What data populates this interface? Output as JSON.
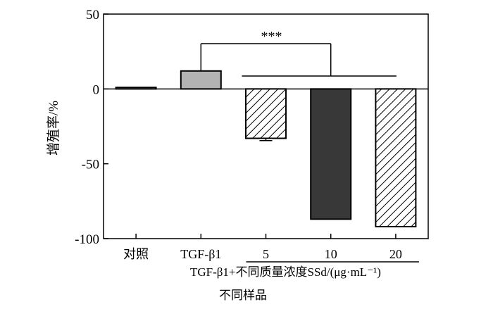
{
  "chart_data": {
    "type": "bar",
    "ylabel": "增殖率/%",
    "xlabel": "不同样品",
    "group_label": "TGF-β1+不同质量浓度SSd/(μg·mL⁻¹)",
    "ylim": [
      -100,
      50
    ],
    "yticks": [
      50,
      0,
      -50,
      -100
    ],
    "categories": [
      "对照",
      "TGF-β1",
      "5",
      "10",
      "20"
    ],
    "values": [
      1,
      12,
      -33,
      -87,
      -92
    ],
    "errors": [
      0,
      0,
      1.5,
      0,
      0
    ],
    "fills": [
      "white",
      "light-gray",
      "hatched",
      "dark-gray",
      "hatched"
    ],
    "colors": {
      "light_gray": "#b3b3b3",
      "dark_gray": "#383838",
      "axis": "#000000"
    },
    "significance": "***",
    "grid": false,
    "legend": false
  }
}
